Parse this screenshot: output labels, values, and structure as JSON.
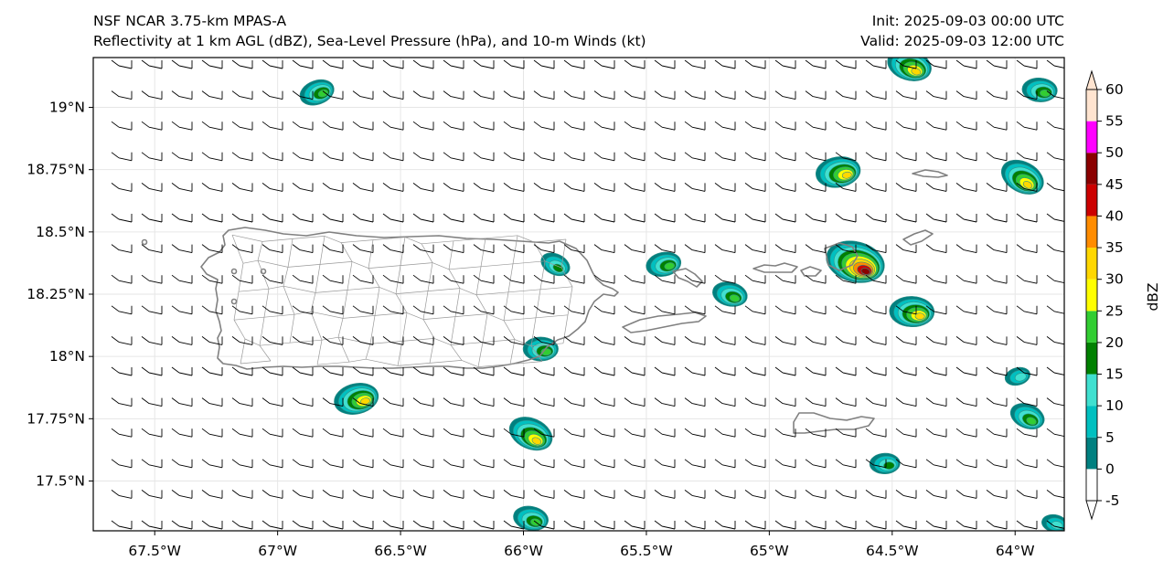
{
  "titles": {
    "left_line1": "NSF NCAR 3.75-km MPAS-A",
    "left_line2": "Reflectivity at 1 km AGL (dBZ), Sea-Level Pressure (hPa), and 10-m Winds (kt)",
    "right_line1": "Init: 2025-09-03 00:00 UTC",
    "right_line2": "Valid: 2025-09-03 12:00 UTC"
  },
  "map": {
    "lon_range": [
      -67.75,
      -63.8
    ],
    "lat_range": [
      17.3,
      19.2
    ],
    "lon_ticks": [
      {
        "value": -67.5,
        "label": "67.5°W"
      },
      {
        "value": -67.0,
        "label": "67°W"
      },
      {
        "value": -66.5,
        "label": "66.5°W"
      },
      {
        "value": -66.0,
        "label": "66°W"
      },
      {
        "value": -65.5,
        "label": "65.5°W"
      },
      {
        "value": -65.0,
        "label": "65°W"
      },
      {
        "value": -64.5,
        "label": "64.5°W"
      },
      {
        "value": -64.0,
        "label": "64°W"
      }
    ],
    "lat_ticks": [
      {
        "value": 19.0,
        "label": "19°N"
      },
      {
        "value": 18.75,
        "label": "18.75°N"
      },
      {
        "value": 18.5,
        "label": "18.5°N"
      },
      {
        "value": 18.25,
        "label": "18.25°N"
      },
      {
        "value": 18.0,
        "label": "18°N"
      },
      {
        "value": 17.75,
        "label": "17.75°N"
      },
      {
        "value": 17.5,
        "label": "17.5°N"
      }
    ]
  },
  "colorbar": {
    "label": "dBZ",
    "ticks": [
      "-5",
      "0",
      "5",
      "10",
      "15",
      "20",
      "25",
      "30",
      "35",
      "40",
      "45",
      "50",
      "55",
      "60"
    ],
    "colors": [
      "#ffffff",
      "#008080",
      "#00c0c0",
      "#40e0d0",
      "#008000",
      "#32cd32",
      "#ffff00",
      "#ffd700",
      "#ff8c00",
      "#cc0000",
      "#8b0000",
      "#ff00ff",
      "#ffe4d0"
    ]
  },
  "reflectivity_cells": [
    {
      "lon": -66.84,
      "lat": 19.06,
      "peak_dbz": 20
    },
    {
      "lon": -64.43,
      "lat": 19.17,
      "peak_dbz": 30
    },
    {
      "lon": -63.9,
      "lat": 19.07,
      "peak_dbz": 20
    },
    {
      "lon": -64.72,
      "lat": 18.74,
      "peak_dbz": 30
    },
    {
      "lon": -63.97,
      "lat": 18.72,
      "peak_dbz": 30
    },
    {
      "lon": -64.65,
      "lat": 18.38,
      "peak_dbz": 45
    },
    {
      "lon": -64.42,
      "lat": 18.18,
      "peak_dbz": 30
    },
    {
      "lon": -65.43,
      "lat": 18.37,
      "peak_dbz": 20
    },
    {
      "lon": -65.87,
      "lat": 18.37,
      "peak_dbz": 15
    },
    {
      "lon": -65.16,
      "lat": 18.25,
      "peak_dbz": 20
    },
    {
      "lon": -65.93,
      "lat": 18.03,
      "peak_dbz": 20
    },
    {
      "lon": -66.68,
      "lat": 17.83,
      "peak_dbz": 30
    },
    {
      "lon": -65.97,
      "lat": 17.69,
      "peak_dbz": 30
    },
    {
      "lon": -65.97,
      "lat": 17.35,
      "peak_dbz": 20
    },
    {
      "lon": -64.53,
      "lat": 17.57,
      "peak_dbz": 15
    },
    {
      "lon": -63.99,
      "lat": 17.92,
      "peak_dbz": 10
    },
    {
      "lon": -63.95,
      "lat": 17.76,
      "peak_dbz": 20
    },
    {
      "lon": -63.84,
      "lat": 17.33,
      "peak_dbz": 10
    }
  ]
}
